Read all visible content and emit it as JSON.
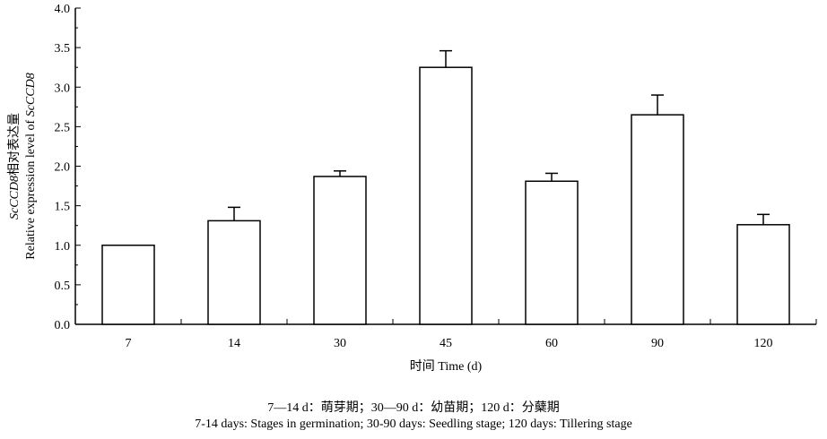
{
  "chart_data": {
    "type": "bar",
    "categories": [
      "7",
      "14",
      "30",
      "45",
      "60",
      "90",
      "120"
    ],
    "values": [
      1.0,
      1.31,
      1.87,
      3.25,
      1.81,
      2.65,
      1.26
    ],
    "errors": [
      0.0,
      0.17,
      0.07,
      0.21,
      0.1,
      0.25,
      0.13
    ],
    "xlabel": "时间 Time (d)",
    "ylabel_parts": [
      {
        "text": "ScCCD8",
        "italic": true
      },
      {
        "text": "相对表达量",
        "italic": false
      }
    ],
    "ylabel2_parts": [
      {
        "text": "Relative expression level  of ",
        "italic": false
      },
      {
        "text": "ScCCD8",
        "italic": true
      }
    ],
    "ylim": [
      0,
      4.0
    ],
    "yticks": [
      "0.0",
      "0.5",
      "1.0",
      "1.5",
      "2.0",
      "2.5",
      "3.0",
      "3.5",
      "4.0"
    ],
    "grid": false,
    "bar_fill": "#ffffff",
    "bar_stroke": "#000000"
  },
  "caption": {
    "line1": "7—14 d：萌芽期；30—90 d：幼苗期；120 d：分蘖期",
    "line2": "7-14 days: Stages in germination; 30-90 days: Seedling stage; 120 days: Tillering stage"
  }
}
